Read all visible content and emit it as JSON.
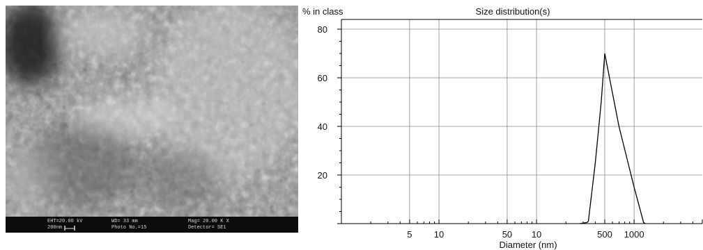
{
  "micrograph": {
    "colors": {
      "background": "#7d7d7d",
      "databar": "#0c0c0c",
      "databar_text": "#d8d8d8"
    },
    "databar": {
      "eht": "EHT=20.00 kV",
      "scale": "200nm",
      "wd": "WD= 33 mm",
      "photo": "Photo No.=15",
      "mag": "Mag= 20.00 K X",
      "detector": "Detector= SE1"
    }
  },
  "chart_data": {
    "type": "line",
    "title": "Size distribution(s)",
    "ylabel": "% in class",
    "xlabel": "Diameter (nm)",
    "x_scale": "log",
    "xlim": [
      1,
      5000
    ],
    "ylim": [
      0,
      84
    ],
    "grid": true,
    "y_ticks": [
      "20",
      "40",
      "60",
      "80"
    ],
    "x_tick_labels": [
      "5",
      "10",
      "50",
      "10",
      "500",
      "1000"
    ],
    "series": [
      {
        "x": [
          280,
          330,
          340,
          400,
          460,
          500,
          700,
          1000,
          1250,
          1300
        ],
        "y": [
          0,
          0.5,
          1,
          25,
          50,
          70,
          40,
          15,
          0.5,
          0
        ]
      }
    ]
  }
}
